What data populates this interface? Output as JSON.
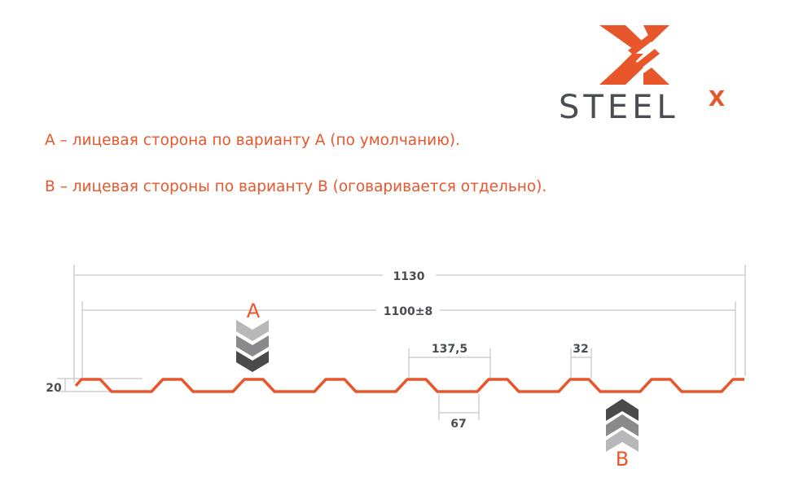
{
  "logo": {
    "text": "STEEL",
    "superscript": "X",
    "brand_color": "#e8572c",
    "text_color": "#4a4d52"
  },
  "notes": [
    "А – лицевая сторона по варианту А (по умолчанию).",
    "В – лицевая стороны по варианту В (оговаривается отдельно)."
  ],
  "dimensions": {
    "total_width": "1130",
    "useful_width": "1100±8",
    "pitch": "137,5",
    "top_width": "32",
    "bottom_width": "67",
    "height": "20"
  },
  "side_labels": {
    "a": "A",
    "b": "B"
  },
  "colors": {
    "profile": "#e8572c",
    "dimension_lines": "#c8c8c8",
    "arrow_dark": "#4a4a4c",
    "arrow_mid": "#8a8a8c",
    "arrow_light": "#b8b8ba"
  }
}
